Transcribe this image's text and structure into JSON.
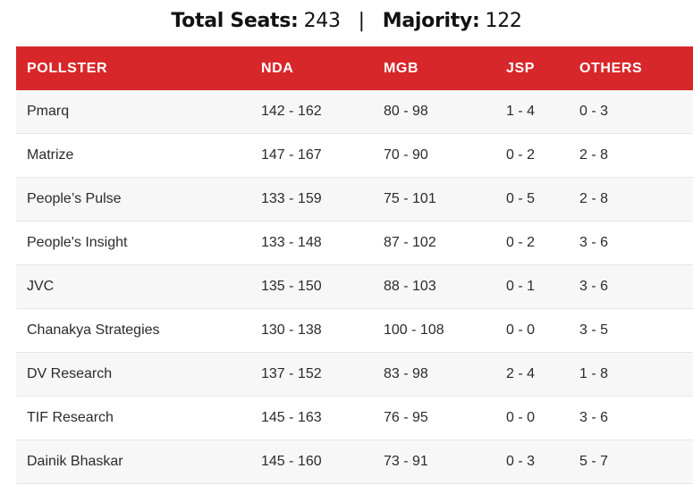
{
  "header": {
    "total_label": "Total Seats:",
    "total_value": "243",
    "separator": "|",
    "majority_label": "Majority:",
    "majority_value": "122"
  },
  "table": {
    "columns": [
      "POLLSTER",
      "NDA",
      "MGB",
      "JSP",
      "OTHERS"
    ],
    "header_color": "#d8272a",
    "rows": [
      [
        "Pmarq",
        "142 - 162",
        "80 - 98",
        "1 - 4",
        "0 - 3"
      ],
      [
        "Matrize",
        "147 - 167",
        "70 - 90",
        "0 - 2",
        "2 - 8"
      ],
      [
        "People’s Pulse",
        "133 - 159",
        "75 - 101",
        "0 - 5",
        "2 - 8"
      ],
      [
        "People's Insight",
        "133 - 148",
        "87 - 102",
        "0 - 2",
        "3 - 6"
      ],
      [
        "JVC",
        "135 - 150",
        "88 - 103",
        "0 - 1",
        "3 - 6"
      ],
      [
        "Chanakya Strategies",
        "130 - 138",
        "100 - 108",
        "0 - 0",
        "3 - 5"
      ],
      [
        "DV Research",
        "137 - 152",
        "83 - 98",
        "2 - 4",
        "1 - 8"
      ],
      [
        "TIF Research",
        "145 - 163",
        "76 - 95",
        "0 - 0",
        "3 - 6"
      ],
      [
        "Dainik Bhaskar",
        "145 - 160",
        "73 - 91",
        "0 - 3",
        "5 - 7"
      ]
    ]
  }
}
